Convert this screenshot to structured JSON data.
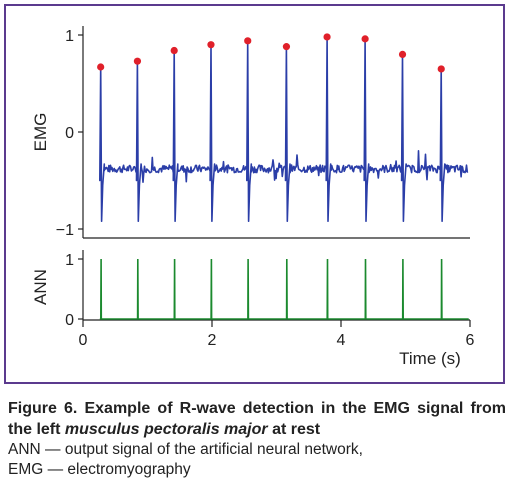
{
  "caption": {
    "figure_label": "Figure 6. Example of R-wave detection in the EMG signal from the left ",
    "figure_italic": "musculus pectoralis major",
    "figure_tail": " at rest",
    "note_line1": "ANN — output signal of the artificial neural network,",
    "note_line2": "EMG — electromyography"
  },
  "colors": {
    "frame": "#5b3a8e",
    "emg_line": "#2b3ea8",
    "ann_line": "#1b8a2e",
    "peak_marker": "#e0202a",
    "axis": "#222222"
  },
  "chart_data": [
    {
      "type": "line",
      "panel": "top",
      "ylabel": "EMG",
      "ylim": [
        -1,
        1
      ],
      "yticks": [
        "1",
        "0",
        "−1"
      ],
      "xlim": [
        0,
        6
      ],
      "series": [
        {
          "kind": "EMG signal",
          "baseline": -0.38,
          "r_peaks": [
            {
              "x": 0.28,
              "y": 0.67
            },
            {
              "x": 0.85,
              "y": 0.73
            },
            {
              "x": 1.42,
              "y": 0.84
            },
            {
              "x": 1.99,
              "y": 0.9
            },
            {
              "x": 2.56,
              "y": 0.94
            },
            {
              "x": 3.16,
              "y": 0.88
            },
            {
              "x": 3.79,
              "y": 0.98
            },
            {
              "x": 4.38,
              "y": 0.96
            },
            {
              "x": 4.96,
              "y": 0.8
            },
            {
              "x": 5.56,
              "y": 0.65
            }
          ]
        }
      ]
    },
    {
      "type": "line",
      "panel": "bottom",
      "ylabel": "ANN",
      "ylim": [
        0,
        1
      ],
      "yticks": [
        "1",
        "0"
      ],
      "xlim": [
        0,
        6
      ],
      "xticks": [
        "0",
        "2",
        "4",
        "6"
      ],
      "xlabel": "Time (s)",
      "series": [
        {
          "kind": "ANN output",
          "pulses_x": [
            0.28,
            0.85,
            1.42,
            1.99,
            2.56,
            3.16,
            3.79,
            4.38,
            4.96,
            5.56
          ],
          "pulse_height": 1.0
        }
      ]
    }
  ]
}
